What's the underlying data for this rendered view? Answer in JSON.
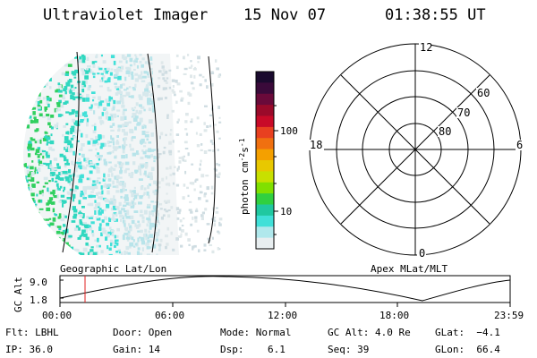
{
  "header": {
    "instrument": "Ultraviolet Imager",
    "date": "15 Nov 07",
    "time": "01:38:55 UT"
  },
  "colorbar": {
    "label": "photon cm",
    "label_sup1": "-2",
    "label_mid": "s",
    "label_sup2": "-1",
    "tick_labels": [
      "100",
      "10"
    ],
    "colors": [
      "#1a0a2e",
      "#3a0a3a",
      "#6a0a3a",
      "#9a0a2a",
      "#c80a28",
      "#e84020",
      "#f07010",
      "#f4a000",
      "#e8c800",
      "#c8e000",
      "#80e000",
      "#30d040",
      "#20c8a0",
      "#40e0d8",
      "#b0e8ec",
      "#e8eef0"
    ]
  },
  "polar_plot": {
    "lat_labels": [
      "80",
      "70",
      "60"
    ],
    "mlt_labels": {
      "top": "12",
      "bottom": "0",
      "left": "18",
      "right": "6"
    }
  },
  "timeline": {
    "left_label": "Geographic Lat/Lon",
    "right_label": "Apex MLat/MLT",
    "axis_label": "GC Alt",
    "y_ticks": [
      "9.0",
      "1.8"
    ],
    "x_ticks": [
      "00:00",
      "06:00",
      "12:00",
      "18:00",
      "23:59"
    ]
  },
  "footer": {
    "filter": "Flt: LBHL",
    "ip": "IP: 36.0",
    "door": "Door: Open",
    "gain": "Gain: 14",
    "mode": "Mode: Normal",
    "dsp": "Dsp:    6.1",
    "gc_alt": "GC Alt: 4.0 Re",
    "seq": "Seq: 39",
    "glat": "GLat:  −4.1",
    "glon": "GLon:  66.4"
  }
}
